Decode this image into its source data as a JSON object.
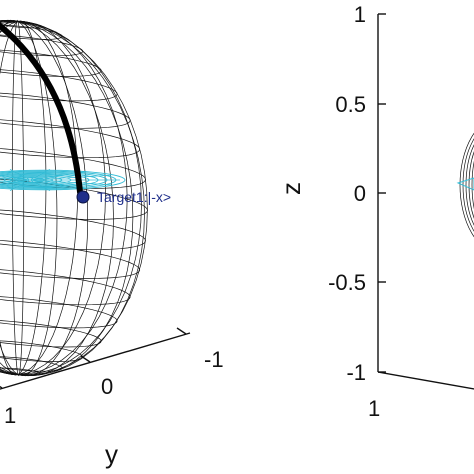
{
  "chart_data": [
    {
      "type": "scatter",
      "plot": "bloch-sphere-3d",
      "title": "",
      "xlabel": "",
      "ylabel": "y",
      "zlabel": "",
      "ylim": [
        -1,
        1
      ],
      "y_ticks": [
        "1",
        "0",
        "-1"
      ],
      "grid": false,
      "colors": {
        "wireframe": "#111111",
        "disk": "#33bcd6",
        "trajectory": "#000000",
        "target": "#1f2f8a"
      },
      "points": [
        {
          "label": "Target1:|-x>",
          "x": -1,
          "y": 0,
          "z": 0
        }
      ],
      "trajectory": [
        {
          "x": 0,
          "y": 0,
          "z": 1
        },
        {
          "x": -0.5,
          "y": 0,
          "z": 0.87
        },
        {
          "x": -0.87,
          "y": 0,
          "z": 0.5
        },
        {
          "x": -1,
          "y": 0,
          "z": 0
        }
      ]
    },
    {
      "type": "scatter",
      "plot": "bloch-sphere-3d",
      "title": "",
      "xlabel": "",
      "ylabel": "",
      "zlabel": "z",
      "zlim": [
        -1,
        1
      ],
      "z_ticks": [
        "1",
        "0.5",
        "0",
        "-0.5",
        "-1"
      ],
      "x_ticks": [
        "1"
      ],
      "grid": false
    }
  ]
}
